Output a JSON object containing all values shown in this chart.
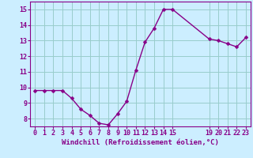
{
  "x": [
    0,
    1,
    2,
    3,
    4,
    5,
    6,
    7,
    8,
    9,
    10,
    11,
    12,
    13,
    14,
    15,
    19,
    20,
    21,
    22,
    23
  ],
  "y": [
    9.8,
    9.8,
    9.8,
    9.8,
    9.3,
    8.6,
    8.2,
    7.7,
    7.6,
    8.3,
    9.1,
    11.1,
    12.9,
    13.8,
    15.0,
    15.0,
    13.1,
    13.0,
    12.8,
    12.6,
    13.2
  ],
  "line_color": "#880088",
  "marker_color": "#880088",
  "bg_color": "#cceeff",
  "grid_color": "#99cccc",
  "xlabel": "Windchill (Refroidissement éolien,°C)",
  "xlabel_color": "#880088",
  "tick_color": "#880088",
  "spine_color": "#880088",
  "xlim": [
    -0.5,
    23.5
  ],
  "ylim": [
    7.5,
    15.5
  ],
  "yticks": [
    8,
    9,
    10,
    11,
    12,
    13,
    14,
    15
  ],
  "xticks": [
    0,
    1,
    2,
    3,
    4,
    5,
    6,
    7,
    8,
    9,
    10,
    11,
    12,
    13,
    14,
    15,
    19,
    20,
    21,
    22,
    23
  ],
  "line_width": 1.0,
  "marker_size": 2.5,
  "tick_fontsize": 6.0,
  "xlabel_fontsize": 6.5
}
